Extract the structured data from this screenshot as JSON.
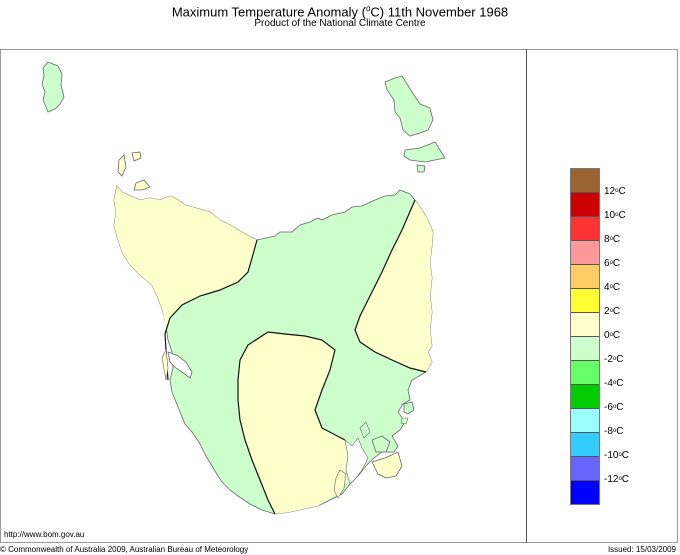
{
  "header": {
    "title_prefix": "Maximum Temperature Anomaly (",
    "title_unit_deg": "o",
    "title_unit_c": "C)  11th November 1968",
    "subtitle": "Product of the National Climate Centre"
  },
  "legend": {
    "bands": [
      {
        "color": "#996633",
        "range": "> 12°C"
      },
      {
        "color": "#cc0000",
        "range": "10 to 12°C"
      },
      {
        "color": "#ff3333",
        "range": "8 to 10°C"
      },
      {
        "color": "#ff9999",
        "range": "6 to 8°C"
      },
      {
        "color": "#ffcc66",
        "range": "4 to 6°C"
      },
      {
        "color": "#ffff33",
        "range": "2 to 4°C"
      },
      {
        "color": "#ffffcc",
        "range": "0 to 2°C"
      },
      {
        "color": "#ccffcc",
        "range": "-2 to 0°C"
      },
      {
        "color": "#66ff66",
        "range": "-4 to -2°C"
      },
      {
        "color": "#00cc00",
        "range": "-6 to -4°C"
      },
      {
        "color": "#99ffff",
        "range": "-8 to -6°C"
      },
      {
        "color": "#33ccff",
        "range": "-10 to -8°C"
      },
      {
        "color": "#6666ff",
        "range": "-12 to -10°C"
      },
      {
        "color": "#0000ff",
        "range": "< -12°C"
      }
    ],
    "labels": [
      {
        "num": "12",
        "unit": "C"
      },
      {
        "num": "10",
        "unit": "C"
      },
      {
        "num": "8",
        "unit": "C"
      },
      {
        "num": "6",
        "unit": "C"
      },
      {
        "num": "4",
        "unit": "C"
      },
      {
        "num": "2",
        "unit": "C"
      },
      {
        "num": "0",
        "unit": "C"
      },
      {
        "num": "-2",
        "unit": "C"
      },
      {
        "num": "-4",
        "unit": "C"
      },
      {
        "num": "-6",
        "unit": "C"
      },
      {
        "num": "-8",
        "unit": "C"
      },
      {
        "num": "-10",
        "unit": "C"
      },
      {
        "num": "-12",
        "unit": "C"
      }
    ],
    "deg": "o"
  },
  "map": {
    "region": "Tasmania",
    "regions": [
      {
        "name": "north-west",
        "anomaly": "0 to 2°C",
        "color": "#ffffcc"
      },
      {
        "name": "central",
        "anomaly": "-2 to 0°C",
        "color": "#ccffcc"
      },
      {
        "name": "south-central",
        "anomaly": "0 to 2°C",
        "color": "#ffffcc"
      },
      {
        "name": "east-coast",
        "anomaly": "0 to 2°C",
        "color": "#ffffcc"
      },
      {
        "name": "king-island",
        "anomaly": "-2 to 0°C",
        "color": "#ccffcc"
      },
      {
        "name": "flinders-island",
        "anomaly": "-2 to 0°C",
        "color": "#ccffcc"
      }
    ]
  },
  "footer": {
    "url": "http://www.bom.gov.au",
    "copyright": "© Commonwealth of Australia 2009, Australian Bureau of Meteorology",
    "issued": "Issued: 15/03/2009"
  }
}
